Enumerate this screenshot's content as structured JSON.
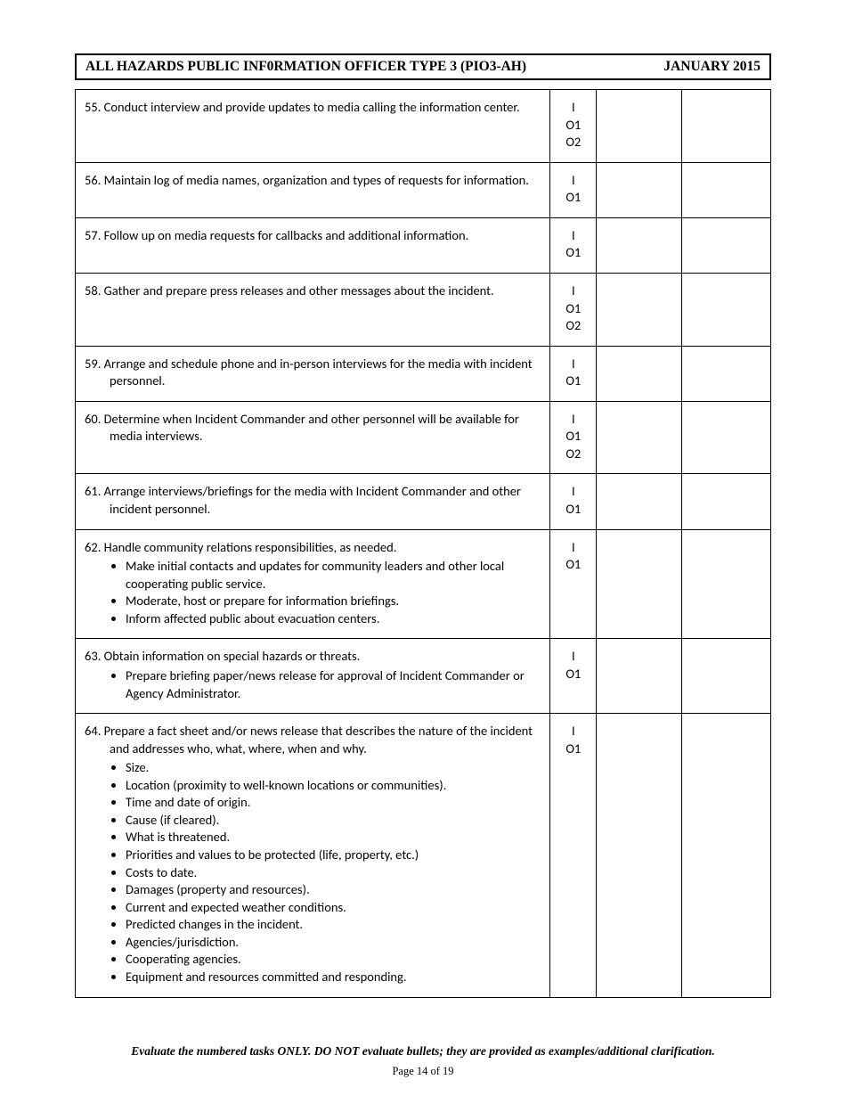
{
  "header": {
    "title": "ALL HAZARDS PUBLIC INF0RMATION OFFICER TYPE 3 (PIO3-AH)",
    "date": "JANUARY 2015"
  },
  "rows": [
    {
      "num": "55.",
      "text": "Conduct interview and provide updates to media calling the information center.",
      "codes": [
        "I",
        "O1",
        "O2"
      ],
      "bullets": []
    },
    {
      "num": "56.",
      "text": "Maintain log of media names, organization and types of requests for information.",
      "codes": [
        "I",
        "O1"
      ],
      "bullets": []
    },
    {
      "num": "57.",
      "text": "Follow up on media requests for callbacks and additional information.",
      "codes": [
        "I",
        "O1"
      ],
      "bullets": []
    },
    {
      "num": "58.",
      "text": "Gather and prepare press releases and other messages about the incident.",
      "codes": [
        "I",
        "O1",
        "O2"
      ],
      "bullets": []
    },
    {
      "num": "59.",
      "text": "Arrange and schedule phone and in-person interviews for the media with incident personnel.",
      "codes": [
        "I",
        "O1"
      ],
      "bullets": []
    },
    {
      "num": "60.",
      "text": "Determine when Incident Commander and other personnel will be available for media interviews.",
      "codes": [
        "I",
        "O1",
        "O2"
      ],
      "bullets": []
    },
    {
      "num": "61.",
      "text": "Arrange interviews/briefings for the media with Incident Commander and other incident personnel.",
      "codes": [
        "I",
        "O1"
      ],
      "bullets": []
    },
    {
      "num": "62.",
      "text": "Handle community relations responsibilities, as needed.",
      "codes": [
        "I",
        "O1"
      ],
      "bullets": [
        "Make initial contacts and updates for community leaders and other local cooperating public service.",
        "Moderate, host or prepare for information briefings.",
        "Inform affected public about evacuation centers."
      ]
    },
    {
      "num": "63.",
      "text": "Obtain information on special hazards or threats.",
      "codes": [
        "I",
        "O1"
      ],
      "bullets": [
        "Prepare briefing paper/news release for approval of Incident Commander or Agency Administrator."
      ]
    },
    {
      "num": "64.",
      "text": "Prepare a fact sheet and/or news release that describes the nature of the incident and addresses who, what, where, when and why.",
      "codes": [
        "I",
        "O1"
      ],
      "bullets": [
        "Size.",
        "Location (proximity to well-known locations or communities).",
        "Time and date of origin.",
        "Cause (if cleared).",
        "What is threatened.",
        "Priorities and values to be protected (life, property, etc.)",
        "Costs to date.",
        "Damages (property and resources).",
        "Current and expected weather conditions.",
        "Predicted changes in the incident.",
        "Agencies/jurisdiction.",
        "Cooperating agencies.",
        "Equipment and resources committed and responding."
      ]
    }
  ],
  "footer": "Evaluate the numbered tasks ONLY. DO NOT evaluate bullets; they are provided as examples/additional clarification.",
  "pagenum": "Page 14 of 19"
}
